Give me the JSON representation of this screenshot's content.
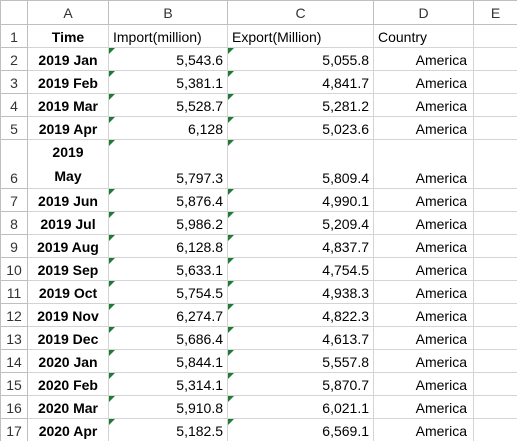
{
  "columns": [
    "A",
    "B",
    "C",
    "D",
    "E"
  ],
  "row_numbers": [
    1,
    2,
    3,
    4,
    5,
    6,
    7,
    8,
    9,
    10,
    11,
    12,
    13,
    14,
    15,
    16,
    17
  ],
  "header": [
    "Time",
    "Import(million)",
    "Export(Million)",
    "Country"
  ],
  "rows": [
    [
      "2019 Jan",
      "5,543.6",
      "5,055.8",
      "America"
    ],
    [
      "2019 Feb",
      "5,381.1",
      "4,841.7",
      "America"
    ],
    [
      "2019 Mar",
      "5,528.7",
      "5,281.2",
      "America"
    ],
    [
      "2019 Apr",
      "6,128",
      "5,023.6",
      "America"
    ],
    [
      "2019 May",
      "5,797.3",
      "5,809.4",
      "America"
    ],
    [
      "2019 Jun",
      "5,876.4",
      "4,990.1",
      "America"
    ],
    [
      "2019 Jul",
      "5,986.2",
      "5,209.4",
      "America"
    ],
    [
      "2019 Aug",
      "6,128.8",
      "4,837.7",
      "America"
    ],
    [
      "2019 Sep",
      "5,633.1",
      "4,754.5",
      "America"
    ],
    [
      "2019 Oct",
      "5,754.5",
      "4,938.3",
      "America"
    ],
    [
      "2019 Nov",
      "6,274.7",
      "4,822.3",
      "America"
    ],
    [
      "2019 Dec",
      "5,686.4",
      "4,613.7",
      "America"
    ],
    [
      "2020 Jan",
      "5,844.1",
      "5,557.8",
      "America"
    ],
    [
      "2020 Feb",
      "5,314.1",
      "5,870.7",
      "America"
    ],
    [
      "2020 Mar",
      "5,910.8",
      "6,021.1",
      "America"
    ],
    [
      "2020 Apr",
      "5,182.5",
      "6,569.1",
      "America"
    ]
  ]
}
